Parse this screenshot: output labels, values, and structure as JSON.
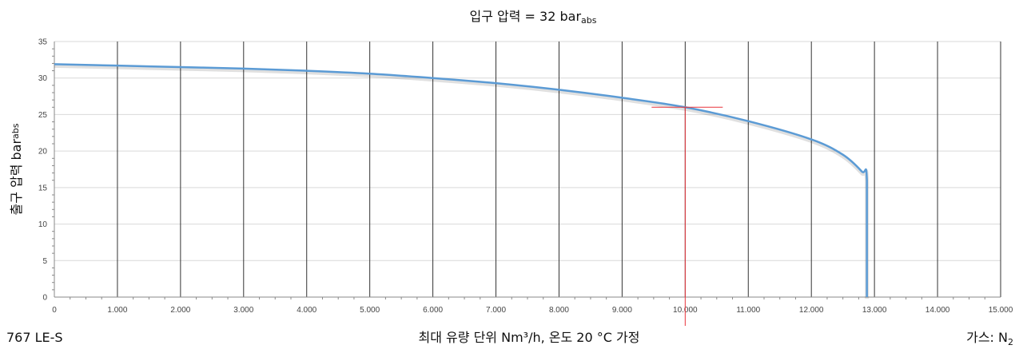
{
  "chart_data": {
    "type": "line",
    "title": "입구 압력 = 32 bar",
    "title_sub": "abs",
    "xlabel": "최대 유량 단위 Nm³/h, 온도 20 °C 가정",
    "ylabel": "출구 압력 bar",
    "ylabel_sub": "abs",
    "model": "767 LE-S",
    "gas_label": "가스: N",
    "gas_sub": "2",
    "xlim": [
      0,
      15000
    ],
    "ylim": [
      0,
      35
    ],
    "x_ticks": [
      0,
      1000,
      2000,
      3000,
      4000,
      5000,
      6000,
      7000,
      8000,
      9000,
      10000,
      11000,
      12000,
      13000,
      14000,
      15000
    ],
    "x_tick_labels": [
      "0",
      "1.000",
      "2.000",
      "3.000",
      "4.000",
      "5.000",
      "6.000",
      "7.000",
      "8.000",
      "9.000",
      "10.000",
      "11.000",
      "12.000",
      "13.000",
      "14.000",
      "15.000"
    ],
    "y_ticks": [
      0,
      5,
      10,
      15,
      20,
      25,
      30,
      35
    ],
    "y_tick_labels": [
      "0",
      "5",
      "10",
      "15",
      "20",
      "25",
      "30",
      "35"
    ],
    "grid": {
      "vertical": true,
      "horizontal": true
    },
    "series": [
      {
        "color": "#5b9bd5",
        "x": [
          0,
          1000,
          2000,
          3000,
          4000,
          5000,
          6000,
          7000,
          8000,
          9000,
          10000,
          11000,
          12000,
          12500,
          12800,
          12880,
          12880
        ],
        "y": [
          31.9,
          31.7,
          31.5,
          31.3,
          31.0,
          30.6,
          30.0,
          29.3,
          28.4,
          27.3,
          26.0,
          24.1,
          21.6,
          19.5,
          17.2,
          16.0,
          0
        ]
      }
    ],
    "marker": {
      "x": 10000,
      "y": 26,
      "color": "#e8343b"
    }
  }
}
